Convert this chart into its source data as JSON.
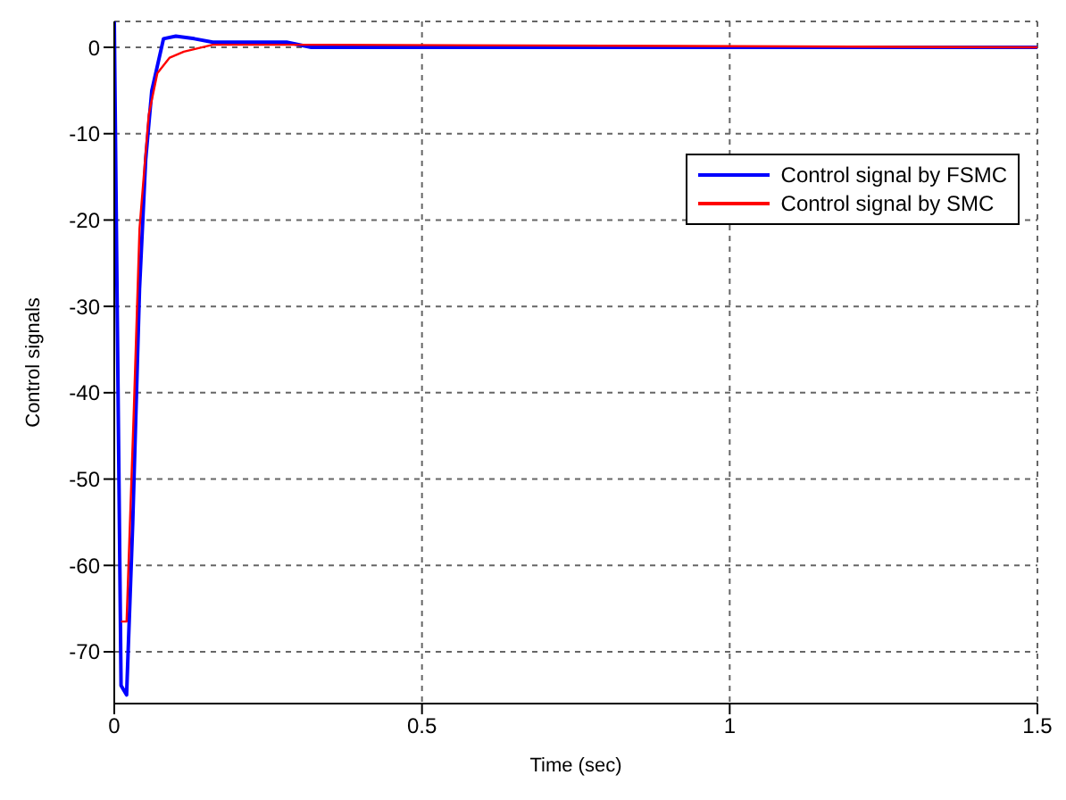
{
  "chart_data": {
    "type": "line",
    "xlabel": "Time (sec)",
    "ylabel": "Control signals",
    "xlim": [
      0,
      1.5
    ],
    "xticks": [
      0,
      0.5,
      1,
      1.5
    ],
    "ylim": [
      -76,
      3
    ],
    "yticks": [
      -70,
      -60,
      -50,
      -40,
      -30,
      -20,
      -10,
      0
    ],
    "grid": true,
    "legend": "top right",
    "line_style": "solid",
    "marker": "none",
    "series": [
      {
        "name": "Control signal by FSMC",
        "color": "#0000ff",
        "x": [
          0,
          0.011,
          0.02,
          0.03,
          0.041,
          0.051,
          0.061,
          0.08,
          0.1,
          0.13,
          0.16,
          0.28,
          0.32,
          1.5
        ],
        "values": [
          3,
          -73.9,
          -75,
          -55,
          -28,
          -13,
          -5,
          1,
          1.3,
          1,
          0.6,
          0.6,
          0,
          0
        ]
      },
      {
        "name": "Control signal by SMC",
        "color": "#ff0000",
        "x": [
          0.011,
          0.02,
          0.032,
          0.041,
          0.056,
          0.07,
          0.09,
          0.113,
          0.16,
          0.35,
          1.5
        ],
        "values": [
          -66.5,
          -66.5,
          -41.5,
          -21,
          -7.8,
          -3,
          -1.2,
          -0.5,
          0.3,
          0.3,
          0
        ]
      }
    ]
  }
}
